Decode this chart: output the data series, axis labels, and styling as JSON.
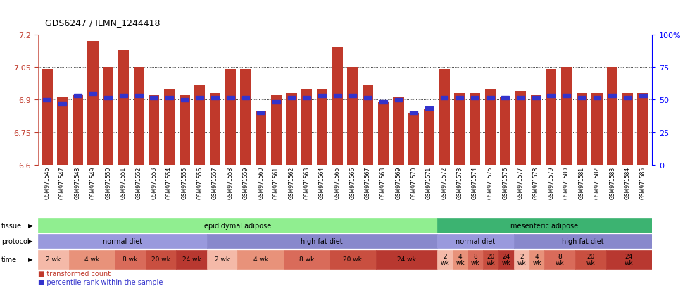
{
  "title": "GDS6247 / ILMN_1244418",
  "samples": [
    "GSM971546",
    "GSM971547",
    "GSM971548",
    "GSM971549",
    "GSM971550",
    "GSM971551",
    "GSM971552",
    "GSM971553",
    "GSM971554",
    "GSM971555",
    "GSM971556",
    "GSM971557",
    "GSM971558",
    "GSM971559",
    "GSM971560",
    "GSM971561",
    "GSM971562",
    "GSM971563",
    "GSM971564",
    "GSM971565",
    "GSM971566",
    "GSM971567",
    "GSM971568",
    "GSM971569",
    "GSM971570",
    "GSM971571",
    "GSM971572",
    "GSM971573",
    "GSM971574",
    "GSM971575",
    "GSM971576",
    "GSM971577",
    "GSM971578",
    "GSM971579",
    "GSM971580",
    "GSM971581",
    "GSM971582",
    "GSM971583",
    "GSM971584",
    "GSM971585"
  ],
  "bar_values": [
    7.04,
    6.91,
    6.92,
    7.17,
    7.05,
    7.13,
    7.05,
    6.92,
    6.95,
    6.92,
    6.97,
    6.93,
    7.04,
    7.04,
    6.85,
    6.92,
    6.93,
    6.95,
    6.95,
    7.14,
    7.05,
    6.97,
    6.89,
    6.91,
    6.84,
    6.86,
    7.04,
    6.93,
    6.93,
    6.95,
    6.91,
    6.94,
    6.92,
    7.04,
    7.05,
    6.93,
    6.93,
    7.05,
    6.93,
    6.93
  ],
  "percentile_values": [
    6.9,
    6.88,
    6.92,
    6.93,
    6.91,
    6.92,
    6.92,
    6.91,
    6.91,
    6.9,
    6.91,
    6.91,
    6.91,
    6.91,
    6.84,
    6.89,
    6.91,
    6.91,
    6.92,
    6.92,
    6.92,
    6.91,
    6.89,
    6.9,
    6.84,
    6.86,
    6.91,
    6.91,
    6.91,
    6.91,
    6.91,
    6.91,
    6.91,
    6.92,
    6.92,
    6.91,
    6.91,
    6.92,
    6.91,
    6.92
  ],
  "ymin": 6.6,
  "ymax": 7.2,
  "yticks": [
    6.6,
    6.75,
    6.9,
    7.05,
    7.2
  ],
  "ytick_labels": [
    "6.6",
    "6.75",
    "6.9",
    "7.05",
    "7.2"
  ],
  "right_yticks": [
    0,
    25,
    50,
    75,
    100
  ],
  "right_ytick_labels": [
    "0",
    "25",
    "50",
    "75",
    "100%"
  ],
  "bar_color": "#c0392b",
  "blue_color": "#3333cc",
  "background_color": "#ffffff",
  "tissue_groups": [
    {
      "label": "epididymal adipose",
      "start": 0,
      "end": 26,
      "color": "#90ee90"
    },
    {
      "label": "mesenteric adipose",
      "start": 26,
      "end": 40,
      "color": "#3cb371"
    }
  ],
  "protocol_groups": [
    {
      "label": "normal diet",
      "start": 0,
      "end": 11,
      "color": "#9999dd"
    },
    {
      "label": "high fat diet",
      "start": 11,
      "end": 26,
      "color": "#8888cc"
    },
    {
      "label": "normal diet",
      "start": 26,
      "end": 31,
      "color": "#9999dd"
    },
    {
      "label": "high fat diet",
      "start": 31,
      "end": 40,
      "color": "#8888cc"
    }
  ],
  "time_groups": [
    {
      "label": "2 wk",
      "start": 0,
      "end": 2,
      "color": "#f4b9a8"
    },
    {
      "label": "4 wk",
      "start": 2,
      "end": 5,
      "color": "#e8927a"
    },
    {
      "label": "8 wk",
      "start": 5,
      "end": 7,
      "color": "#d96b5a"
    },
    {
      "label": "20 wk",
      "start": 7,
      "end": 9,
      "color": "#c94f40"
    },
    {
      "label": "24 wk",
      "start": 9,
      "end": 11,
      "color": "#b83830"
    },
    {
      "label": "2 wk",
      "start": 11,
      "end": 13,
      "color": "#f4b9a8"
    },
    {
      "label": "4 wk",
      "start": 13,
      "end": 16,
      "color": "#e8927a"
    },
    {
      "label": "8 wk",
      "start": 16,
      "end": 19,
      "color": "#d96b5a"
    },
    {
      "label": "20 wk",
      "start": 19,
      "end": 22,
      "color": "#c94f40"
    },
    {
      "label": "24 wk",
      "start": 22,
      "end": 26,
      "color": "#b83830"
    },
    {
      "label": "2\nwk",
      "start": 26,
      "end": 27,
      "color": "#f4b9a8"
    },
    {
      "label": "4\nwk",
      "start": 27,
      "end": 28,
      "color": "#e8927a"
    },
    {
      "label": "8\nwk",
      "start": 28,
      "end": 29,
      "color": "#d96b5a"
    },
    {
      "label": "20\nwk",
      "start": 29,
      "end": 30,
      "color": "#c94f40"
    },
    {
      "label": "24\nwk",
      "start": 30,
      "end": 31,
      "color": "#b83830"
    },
    {
      "label": "2\nwk",
      "start": 31,
      "end": 32,
      "color": "#f4b9a8"
    },
    {
      "label": "4\nwk",
      "start": 32,
      "end": 33,
      "color": "#e8927a"
    },
    {
      "label": "8\nwk",
      "start": 33,
      "end": 35,
      "color": "#d96b5a"
    },
    {
      "label": "20\nwk",
      "start": 35,
      "end": 37,
      "color": "#c94f40"
    },
    {
      "label": "24\nwk",
      "start": 37,
      "end": 40,
      "color": "#b83830"
    }
  ],
  "row_labels": [
    "tissue",
    "protocol",
    "time"
  ],
  "legend_items": [
    {
      "label": "transformed count",
      "color": "#c0392b"
    },
    {
      "label": "percentile rank within the sample",
      "color": "#3333cc"
    }
  ]
}
